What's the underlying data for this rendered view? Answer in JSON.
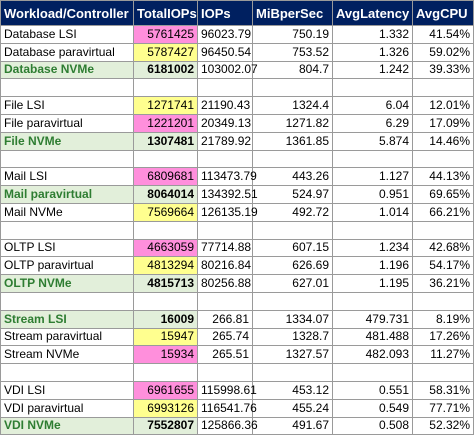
{
  "colors": {
    "header_bg": "#002060",
    "header_text": "#ffffff",
    "best_row_text": "#2e7d32",
    "best_row_bg": "#e2efda",
    "lowest_highlight": "#ff8fdc",
    "middle_highlight": "#ffff8f",
    "highest_highlight": "#e2efda",
    "grid": "#9a9a9a"
  },
  "table": {
    "headers": [
      "Workload/Controller",
      "TotalIOPs",
      "IOPs",
      "MiBperSec",
      "AvgLatency",
      "AvgCPU"
    ],
    "rows": [
      {
        "name": "Database LSI",
        "total": "5761425",
        "iops": "96023.79",
        "mib": "750.19",
        "lat": "1.332",
        "cpu": "41.54%",
        "hl": "pink",
        "best": false
      },
      {
        "name": "Database paravirtual",
        "total": "5787427",
        "iops": "96450.54",
        "mib": "753.52",
        "lat": "1.326",
        "cpu": "59.02%",
        "hl": "yellow",
        "best": false
      },
      {
        "name": "Database NVMe",
        "total": "6181002",
        "iops": "103002.07",
        "mib": "804.7",
        "lat": "1.242",
        "cpu": "39.33%",
        "hl": "green",
        "best": true
      },
      {
        "name": "File LSI",
        "total": "1271741",
        "iops": "21190.43",
        "mib": "1324.4",
        "lat": "6.04",
        "cpu": "12.01%",
        "hl": "yellow",
        "best": false
      },
      {
        "name": "File paravirtual",
        "total": "1221201",
        "iops": "20349.13",
        "mib": "1271.82",
        "lat": "6.29",
        "cpu": "17.09%",
        "hl": "pink",
        "best": false
      },
      {
        "name": "File NVMe",
        "total": "1307481",
        "iops": "21789.92",
        "mib": "1361.85",
        "lat": "5.874",
        "cpu": "14.46%",
        "hl": "green",
        "best": true
      },
      {
        "name": "Mail LSI",
        "total": "6809681",
        "iops": "113473.79",
        "mib": "443.26",
        "lat": "1.127",
        "cpu": "44.13%",
        "hl": "pink",
        "best": false
      },
      {
        "name": "Mail paravirtual",
        "total": "8064014",
        "iops": "134392.51",
        "mib": "524.97",
        "lat": "0.951",
        "cpu": "69.65%",
        "hl": "green",
        "best": true
      },
      {
        "name": "Mail NVMe",
        "total": "7569664",
        "iops": "126135.19",
        "mib": "492.72",
        "lat": "1.014",
        "cpu": "66.21%",
        "hl": "yellow",
        "best": false
      },
      {
        "name": "OLTP LSI",
        "total": "4663059",
        "iops": "77714.88",
        "mib": "607.15",
        "lat": "1.234",
        "cpu": "42.68%",
        "hl": "pink",
        "best": false
      },
      {
        "name": "OLTP paravirtual",
        "total": "4813294",
        "iops": "80216.84",
        "mib": "626.69",
        "lat": "1.196",
        "cpu": "54.17%",
        "hl": "yellow",
        "best": false
      },
      {
        "name": "OLTP NVMe",
        "total": "4815713",
        "iops": "80256.88",
        "mib": "627.01",
        "lat": "1.195",
        "cpu": "36.21%",
        "hl": "green",
        "best": true
      },
      {
        "name": "Stream LSI",
        "total": "16009",
        "iops": "266.81",
        "mib": "1334.07",
        "lat": "479.731",
        "cpu": "8.19%",
        "hl": "green",
        "best": true
      },
      {
        "name": "Stream paravirtual",
        "total": "15947",
        "iops": "265.74",
        "mib": "1328.7",
        "lat": "481.488",
        "cpu": "17.26%",
        "hl": "yellow",
        "best": false
      },
      {
        "name": "Stream NVMe",
        "total": "15934",
        "iops": "265.51",
        "mib": "1327.57",
        "lat": "482.093",
        "cpu": "11.27%",
        "hl": "pink",
        "best": false
      },
      {
        "name": "VDI LSI",
        "total": "6961655",
        "iops": "115998.61",
        "mib": "453.12",
        "lat": "0.551",
        "cpu": "58.31%",
        "hl": "pink",
        "best": false
      },
      {
        "name": "VDI paravirtual",
        "total": "6993126",
        "iops": "116541.76",
        "mib": "455.24",
        "lat": "0.549",
        "cpu": "77.71%",
        "hl": "yellow",
        "best": false
      },
      {
        "name": "VDI NVMe",
        "total": "7552807",
        "iops": "125866.36",
        "mib": "491.67",
        "lat": "0.508",
        "cpu": "52.32%",
        "hl": "green",
        "best": true
      }
    ]
  }
}
